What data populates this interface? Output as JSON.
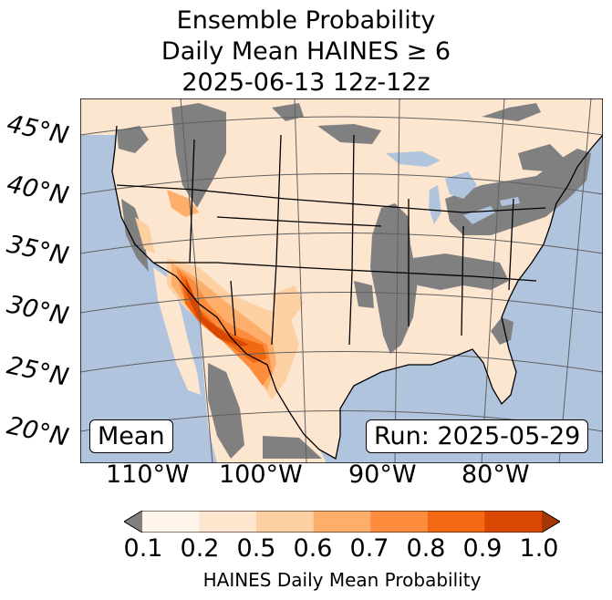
{
  "title": {
    "line1": "Ensemble Probability",
    "line2": "Daily Mean HAINES ≥ 6",
    "line3": "2025-06-13 12z-12z"
  },
  "map": {
    "lat_labels": [
      "45°N",
      "40°N",
      "35°N",
      "30°N",
      "25°N",
      "20°N"
    ],
    "lon_labels": [
      "110°W",
      "100°W",
      "90°W",
      "80°W"
    ],
    "mean_label": "Mean",
    "run_label": "Run: 2025-05-29",
    "colors": {
      "ocean": "#b0c4de",
      "land": "#fde6d0",
      "masked": "#808080",
      "lakes": "#b0c4de"
    }
  },
  "colorbar": {
    "label": "HAINES Daily Mean Probability",
    "ticks": [
      "0.1",
      "0.2",
      "0.5",
      "0.6",
      "0.7",
      "0.8",
      "0.9",
      "1.0"
    ],
    "colors": [
      "#fff5eb",
      "#fee6ce",
      "#fdd0a2",
      "#fdae6b",
      "#fd8d3c",
      "#f16913",
      "#d94801",
      "#a63603"
    ],
    "under_color": "#808080"
  }
}
